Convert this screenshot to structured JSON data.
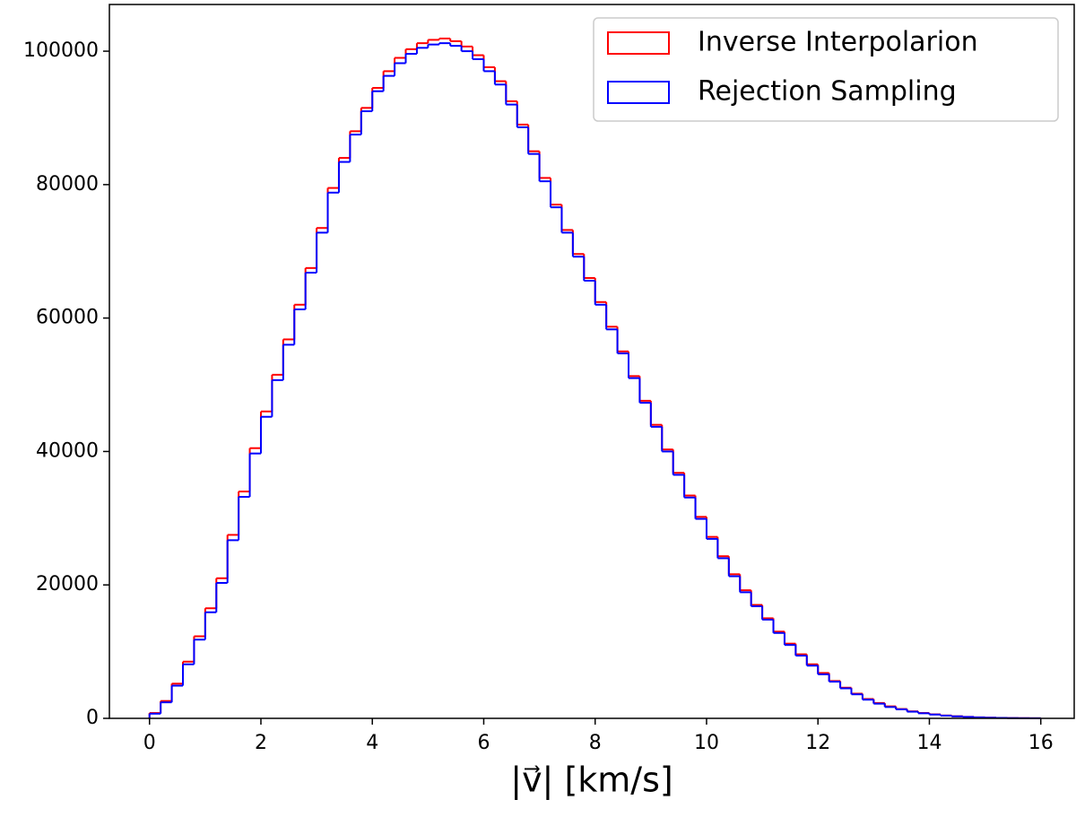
{
  "chart_data": {
    "type": "histogram",
    "xlabel": "|v⃗| [km/s]",
    "bins": [
      0,
      0.2,
      0.4,
      0.6,
      0.8,
      1,
      1.2,
      1.4,
      1.6,
      1.8,
      2,
      2.2,
      2.4,
      2.6,
      2.8,
      3,
      3.2,
      3.4,
      3.6,
      3.8,
      4,
      4.2,
      4.4,
      4.6,
      4.8,
      5,
      5.2,
      5.4,
      5.6,
      5.8,
      6,
      6.2,
      6.4,
      6.6,
      6.8,
      7,
      7.2,
      7.4,
      7.6,
      7.8,
      8,
      8.2,
      8.4,
      8.6,
      8.8,
      9,
      9.2,
      9.4,
      9.6,
      9.8,
      10,
      10.2,
      10.4,
      10.6,
      10.8,
      11,
      11.2,
      11.4,
      11.6,
      11.8,
      12,
      12.2,
      12.4,
      12.6,
      12.8,
      13,
      13.2,
      13.4,
      13.6,
      13.8,
      14,
      14.2,
      14.4,
      14.6,
      14.8,
      15,
      15.2,
      15.4,
      15.6,
      15.8,
      16
    ],
    "series": [
      {
        "name": "Inverse Interpolarion",
        "color": "#ff0000",
        "values": [
          800,
          2600,
          5200,
          8500,
          12300,
          16500,
          21000,
          27500,
          34000,
          40500,
          46000,
          51500,
          56800,
          62000,
          67500,
          73500,
          79500,
          84000,
          88000,
          91500,
          94500,
          97000,
          99000,
          100300,
          101200,
          101700,
          101900,
          101500,
          100700,
          99400,
          97600,
          95500,
          92500,
          89000,
          85000,
          81000,
          77000,
          73200,
          69600,
          66000,
          62400,
          58700,
          55000,
          51300,
          47600,
          44000,
          40300,
          36800,
          33400,
          30200,
          27200,
          24300,
          21600,
          19200,
          17000,
          15000,
          13000,
          11200,
          9600,
          8100,
          6800,
          5600,
          4600,
          3700,
          2900,
          2300,
          1800,
          1400,
          1050,
          800,
          600,
          430,
          310,
          220,
          150,
          100,
          70,
          45,
          30,
          20
        ]
      },
      {
        "name": "Rejection Sampling",
        "color": "#0000ff",
        "values": [
          700,
          2400,
          4900,
          8100,
          11800,
          15900,
          20300,
          26700,
          33200,
          39700,
          45200,
          50700,
          56000,
          61300,
          66800,
          72800,
          78800,
          83400,
          87500,
          91000,
          94000,
          96300,
          98200,
          99600,
          100500,
          101000,
          101200,
          100800,
          100000,
          98800,
          97000,
          95000,
          92000,
          88600,
          84600,
          80500,
          76600,
          72800,
          69200,
          65600,
          62000,
          58300,
          54700,
          51000,
          47300,
          43700,
          40000,
          36500,
          33100,
          29900,
          26900,
          24000,
          21300,
          18900,
          16800,
          14800,
          12800,
          11000,
          9400,
          7900,
          6600,
          5500,
          4500,
          3600,
          2800,
          2200,
          1700,
          1350,
          1000,
          760,
          570,
          410,
          300,
          210,
          140,
          95,
          65,
          42,
          28,
          18
        ]
      }
    ],
    "xlim": [
      -0.72,
      16.6
    ],
    "ylim": [
      0,
      107000
    ],
    "xticks": [
      0,
      2,
      4,
      6,
      8,
      10,
      12,
      14,
      16
    ],
    "yticks": [
      0,
      20000,
      40000,
      60000,
      80000,
      100000
    ],
    "legend": "upper right"
  }
}
